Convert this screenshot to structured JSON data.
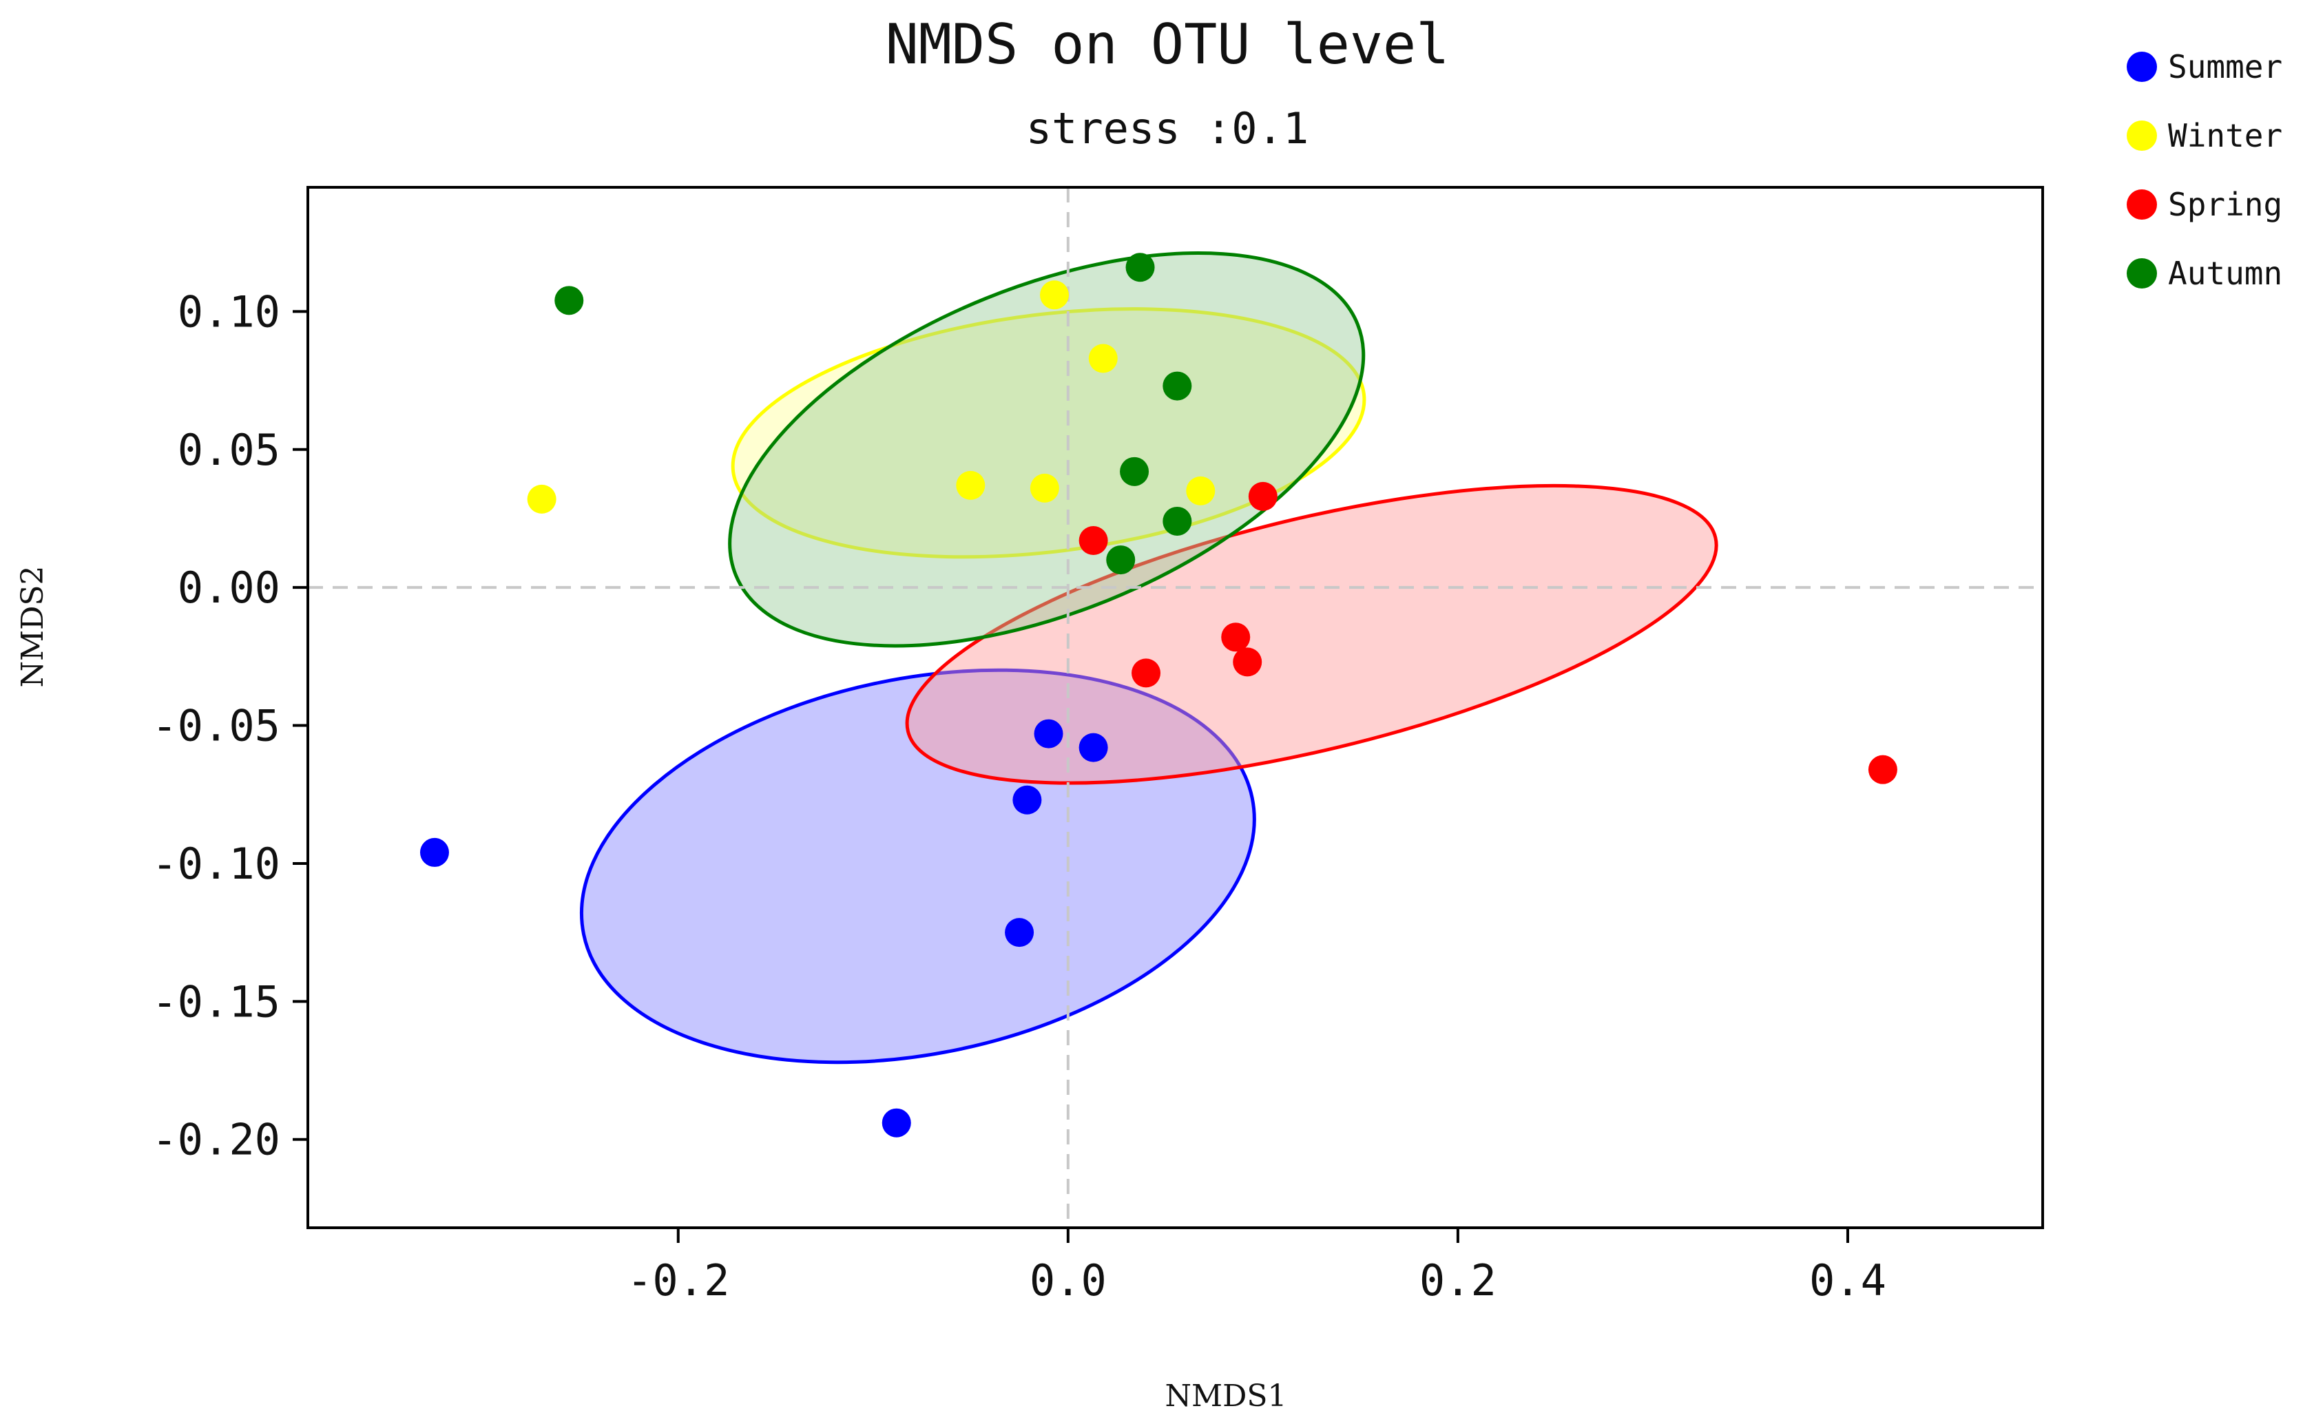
{
  "chart_data": {
    "type": "scatter",
    "title": "NMDS on OTU level",
    "subtitle": "stress :0.1",
    "xlabel": "NMDS1",
    "ylabel": "NMDS2",
    "xlim": [
      -0.39,
      0.5
    ],
    "ylim": [
      -0.232,
      0.145
    ],
    "xticks": [
      -0.2,
      0.0,
      0.2,
      0.4
    ],
    "xtick_labels": [
      "-0.2",
      "0.0",
      "0.2",
      "0.4"
    ],
    "yticks": [
      0.1,
      0.05,
      0.0,
      -0.05,
      -0.1,
      -0.15,
      -0.2
    ],
    "ytick_labels": [
      "0.10",
      "0.05",
      "0.00",
      "-0.05",
      "-0.10",
      "-0.15",
      "-0.20"
    ],
    "grid": false,
    "reference_lines": {
      "x": 0.0,
      "y": 0.0
    },
    "legend_position": "outside top-right",
    "series": [
      {
        "name": "Summer",
        "color": "#0000ff",
        "points": [
          {
            "x": -0.325,
            "y": -0.096
          },
          {
            "x": -0.088,
            "y": -0.194
          },
          {
            "x": -0.01,
            "y": -0.053
          },
          {
            "x": 0.013,
            "y": -0.058
          },
          {
            "x": -0.021,
            "y": -0.077
          },
          {
            "x": -0.025,
            "y": -0.125
          }
        ],
        "ellipse": {
          "cx": -0.077,
          "cy": -0.101,
          "rx": 0.175,
          "ry": 0.068,
          "angle_deg": -11.5,
          "fill": "#8080ff"
        }
      },
      {
        "name": "Winter",
        "color": "#ffff00",
        "points": [
          {
            "x": -0.27,
            "y": 0.032
          },
          {
            "x": -0.007,
            "y": 0.106
          },
          {
            "x": 0.018,
            "y": 0.083
          },
          {
            "x": -0.05,
            "y": 0.037
          },
          {
            "x": -0.012,
            "y": 0.036
          },
          {
            "x": 0.068,
            "y": 0.035
          }
        ],
        "ellipse": {
          "cx": -0.01,
          "cy": 0.056,
          "rx": 0.163,
          "ry": 0.043,
          "angle_deg": -7.0,
          "fill": "#ffff99"
        }
      },
      {
        "name": "Spring",
        "color": "#ff0000",
        "points": [
          {
            "x": 0.013,
            "y": 0.017
          },
          {
            "x": 0.1,
            "y": 0.033
          },
          {
            "x": 0.086,
            "y": -0.018
          },
          {
            "x": 0.092,
            "y": -0.027
          },
          {
            "x": 0.04,
            "y": -0.031
          },
          {
            "x": 0.418,
            "y": -0.066
          }
        ],
        "ellipse": {
          "cx": 0.125,
          "cy": -0.017,
          "rx": 0.213,
          "ry": 0.042,
          "angle_deg": -13.5,
          "fill": "#ff9999"
        }
      },
      {
        "name": "Autumn",
        "color": "#008000",
        "points": [
          {
            "x": -0.256,
            "y": 0.104
          },
          {
            "x": 0.037,
            "y": 0.116
          },
          {
            "x": 0.056,
            "y": 0.073
          },
          {
            "x": 0.034,
            "y": 0.042
          },
          {
            "x": 0.056,
            "y": 0.024
          },
          {
            "x": 0.027,
            "y": 0.01
          }
        ],
        "ellipse": {
          "cx": -0.011,
          "cy": 0.05,
          "rx": 0.172,
          "ry": 0.059,
          "angle_deg": -22.0,
          "fill": "#99cc99"
        }
      }
    ]
  }
}
